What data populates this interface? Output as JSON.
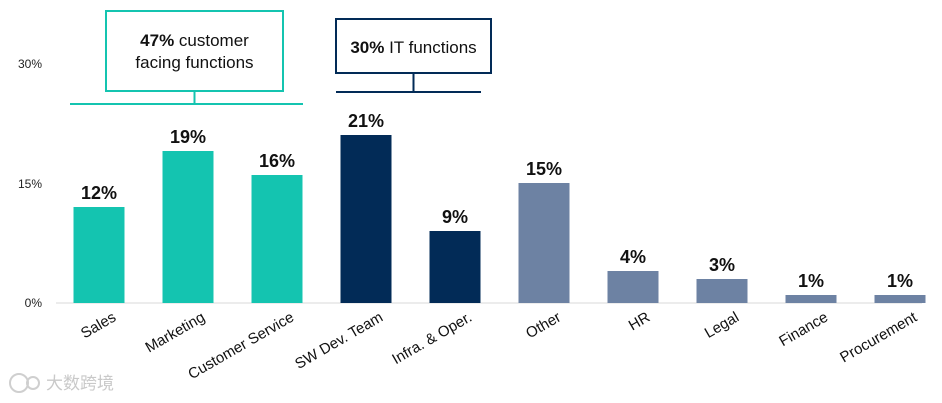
{
  "chart_data": {
    "type": "bar",
    "categories": [
      "Sales",
      "Marketing",
      "Customer Service",
      "SW Dev. Team",
      "Infra. & Oper.",
      "Other",
      "HR",
      "Legal",
      "Finance",
      "Procurement"
    ],
    "values": [
      12,
      19,
      16,
      21,
      9,
      15,
      4,
      3,
      1,
      1
    ],
    "value_labels": [
      "12%",
      "19%",
      "16%",
      "21%",
      "9%",
      "15%",
      "4%",
      "3%",
      "1%",
      "1%"
    ],
    "groups": [
      "customer",
      "customer",
      "customer",
      "it",
      "it",
      "other",
      "other",
      "other",
      "other",
      "other"
    ],
    "colors": {
      "customer": "#14c4b0",
      "it": "#022b57",
      "other": "#6d82a3",
      "customer_box": "#14c4b0",
      "it_box": "#022b57"
    },
    "yticks": [
      "0%",
      "15%",
      "30%"
    ],
    "ylim": [
      0,
      30
    ],
    "grid": false,
    "title": "",
    "xlabel": "",
    "ylabel": "",
    "annotations": {
      "customer": {
        "bold": "47%",
        "line1_rest": " customer",
        "line2": "facing functions"
      },
      "it": {
        "bold": "30%",
        "rest": " IT functions"
      }
    }
  },
  "watermark": {
    "text": "大数跨境"
  }
}
